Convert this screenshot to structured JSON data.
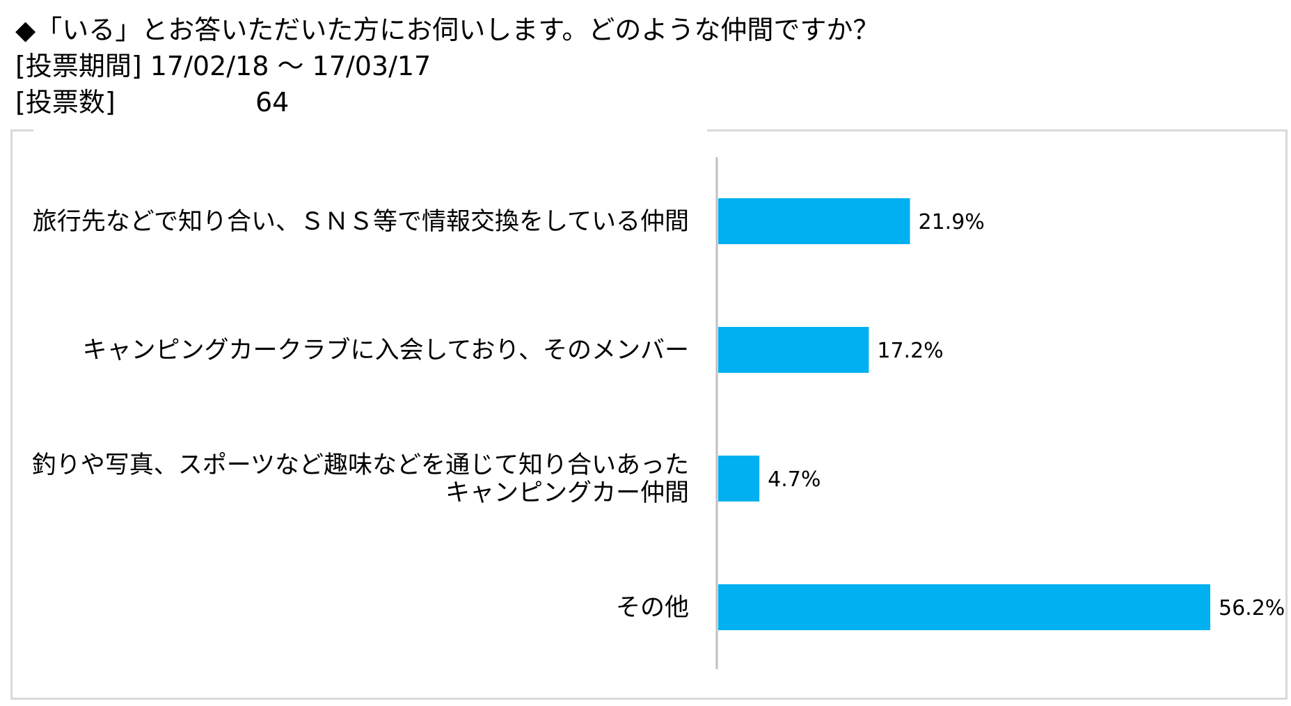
{
  "header": {
    "question": "◆「いる」とお答いただいた方にお伺いします。どのような仲間ですか？",
    "period_label": "[投票期間] 17/02/18 ～ 17/03/17",
    "votes_label": "[投票数]",
    "votes_value": "64"
  },
  "chart_data": {
    "type": "bar",
    "orientation": "horizontal",
    "categories": [
      [
        "旅行先などで知り合い、ＳＮＳ等で情報交換をしている仲間"
      ],
      [
        "キャンピングカークラブに入会しており、そのメンバー"
      ],
      [
        "釣りや写真、スポーツなど趣味などを通じて知り合いあった",
        "キャンピングカー仲間"
      ],
      [
        "その他"
      ]
    ],
    "values": [
      21.9,
      17.2,
      4.7,
      56.2
    ],
    "value_labels": [
      "21.9%",
      "17.2%",
      "4.7%",
      "56.2%"
    ],
    "xlim": [
      0,
      60
    ],
    "grid": false,
    "legend": "none",
    "bar_color": "#00b0f0",
    "axis_color": "#bfbfbf"
  }
}
